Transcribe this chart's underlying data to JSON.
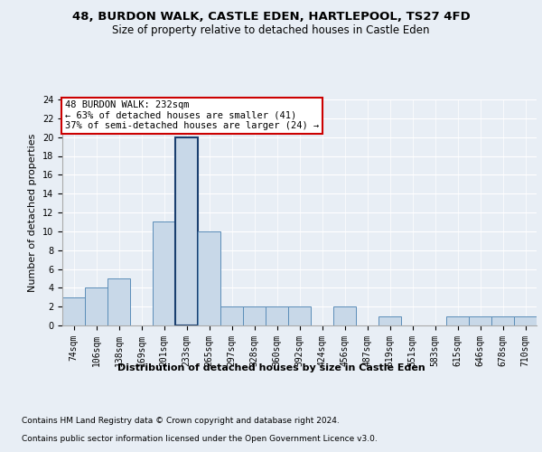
{
  "title_line1": "48, BURDON WALK, CASTLE EDEN, HARTLEPOOL, TS27 4FD",
  "title_line2": "Size of property relative to detached houses in Castle Eden",
  "xlabel": "Distribution of detached houses by size in Castle Eden",
  "ylabel": "Number of detached properties",
  "footer_line1": "Contains HM Land Registry data © Crown copyright and database right 2024.",
  "footer_line2": "Contains public sector information licensed under the Open Government Licence v3.0.",
  "annotation_line1": "48 BURDON WALK: 232sqm",
  "annotation_line2": "← 63% of detached houses are smaller (41)",
  "annotation_line3": "37% of semi-detached houses are larger (24) →",
  "bar_labels": [
    "74sqm",
    "106sqm",
    "138sqm",
    "169sqm",
    "201sqm",
    "233sqm",
    "265sqm",
    "297sqm",
    "328sqm",
    "360sqm",
    "392sqm",
    "424sqm",
    "456sqm",
    "487sqm",
    "519sqm",
    "551sqm",
    "583sqm",
    "615sqm",
    "646sqm",
    "678sqm",
    "710sqm"
  ],
  "bar_heights": [
    3,
    4,
    5,
    0,
    11,
    20,
    10,
    2,
    2,
    2,
    2,
    0,
    2,
    0,
    1,
    0,
    0,
    1,
    1,
    1,
    1
  ],
  "bar_color": "#c8d8e8",
  "bar_edge_color": "#5b8db8",
  "highlight_bar_index": 5,
  "highlight_edge_color": "#1a3f6f",
  "ylim": [
    0,
    24
  ],
  "yticks": [
    0,
    2,
    4,
    6,
    8,
    10,
    12,
    14,
    16,
    18,
    20,
    22,
    24
  ],
  "bg_color": "#e8eef5",
  "plot_bg_color": "#e8eef5",
  "annotation_box_edge_color": "#cc0000",
  "annotation_box_face_color": "white",
  "grid_color": "#ffffff",
  "title1_fontsize": 9.5,
  "title2_fontsize": 8.5,
  "ylabel_fontsize": 8,
  "xlabel_fontsize": 8,
  "tick_fontsize": 7,
  "footer_fontsize": 6.5,
  "ann_fontsize": 7.5
}
